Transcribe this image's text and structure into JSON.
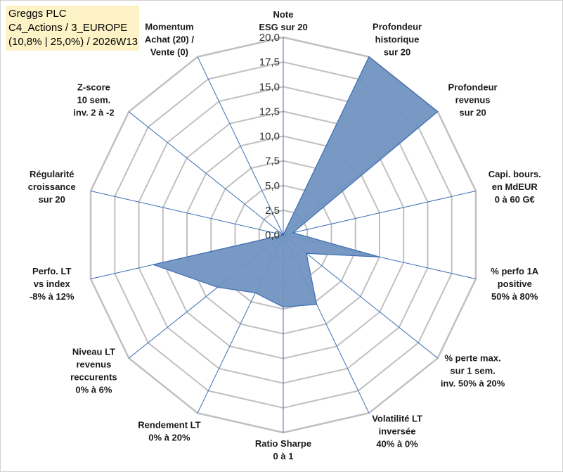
{
  "header": {
    "line1": "Greggs PLC",
    "line2": "C4_Actions / 3_EUROPE",
    "line3": "(10,8% | 25,0%) / 2026W13"
  },
  "colors": {
    "fill": "#7094c0",
    "line": "#3d6eb5",
    "grid": "#c0c0c0",
    "title_bg": "#fdf3c7"
  },
  "chart_data": {
    "type": "radar",
    "rmin": 0,
    "rmax": 20,
    "ticks": [
      "0,0",
      "2,5",
      "5,0",
      "7,5",
      "10,0",
      "12,5",
      "15,0",
      "17,5",
      "20,0"
    ],
    "tick_values": [
      0,
      2.5,
      5,
      7.5,
      10,
      12.5,
      15,
      17.5,
      20
    ],
    "grid_step": 2.5,
    "axes": [
      {
        "label": [
          "Note",
          "ESG sur 20"
        ],
        "value": 0
      },
      {
        "label": [
          "Profondeur",
          "historique",
          "sur 20"
        ],
        "value": 20
      },
      {
        "label": [
          "Profondeur",
          "revenus",
          "sur 20"
        ],
        "value": 20
      },
      {
        "label": [
          "Capi. bours.",
          "en MdEUR",
          "0 à 60 G€"
        ],
        "value": 1
      },
      {
        "label": [
          "% perfo 1A",
          "positive",
          "50% à 80%"
        ],
        "value": 10
      },
      {
        "label": [
          "% perte max.",
          "sur 1 sem.",
          "inv. 50% à 20%"
        ],
        "value": 3
      },
      {
        "label": [
          "Volatilité LT",
          "inversée",
          "40% à 0%"
        ],
        "value": 7.8
      },
      {
        "label": [
          "Ratio Sharpe",
          "0 à 1"
        ],
        "value": 7.3
      },
      {
        "label": [
          "Rendement LT",
          "0% à 20%"
        ],
        "value": 6.5
      },
      {
        "label": [
          "Niveau LT",
          "revenus",
          "reccurents",
          "0% à 6%"
        ],
        "value": 8.5
      },
      {
        "label": [
          "Perfo. LT",
          "vs index",
          "-8% à 12%"
        ],
        "value": 13.5
      },
      {
        "label": [
          "Régularité",
          "croissance",
          "sur 20"
        ],
        "value": 0
      },
      {
        "label": [
          "Z-score",
          "10 sem.",
          "inv. 2 à -2"
        ],
        "value": 0.5
      },
      {
        "label": [
          "Momentum",
          "Achat (20) /",
          "Vente (0)"
        ],
        "value": 0
      }
    ]
  }
}
